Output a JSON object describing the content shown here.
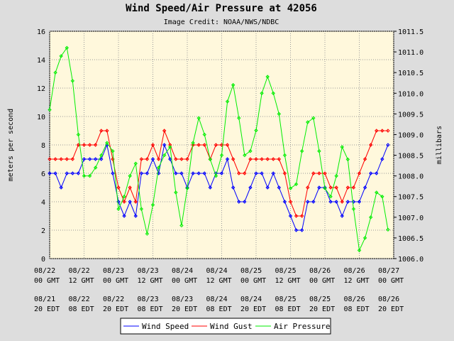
{
  "chart_data": {
    "type": "line",
    "title": "Wind Speed/Air Pressure at 42056",
    "subtitle": "Image Credit: NOAA/NWS/NDBC",
    "ylabel_left": "meters per second",
    "ylabel_right": "millibars",
    "ylim_left": [
      0,
      16
    ],
    "ylim_right": [
      1006.0,
      1011.5
    ],
    "yticks_left": [
      "0",
      "2",
      "4",
      "6",
      "8",
      "10",
      "12",
      "14",
      "16"
    ],
    "yticks_right": [
      "1006.0",
      "1006.5",
      "1007.0",
      "1007.5",
      "1008.0",
      "1008.5",
      "1009.0",
      "1009.5",
      "1010.0",
      "1010.5",
      "1011.0",
      "1011.5"
    ],
    "x_hours_range": [
      0,
      120
    ],
    "xticks_gmt": [
      {
        "date": "08/22",
        "time": "00 GMT"
      },
      {
        "date": "08/22",
        "time": "12 GMT"
      },
      {
        "date": "08/23",
        "time": "00 GMT"
      },
      {
        "date": "08/23",
        "time": "12 GMT"
      },
      {
        "date": "08/24",
        "time": "00 GMT"
      },
      {
        "date": "08/24",
        "time": "12 GMT"
      },
      {
        "date": "08/25",
        "time": "00 GMT"
      },
      {
        "date": "08/25",
        "time": "12 GMT"
      },
      {
        "date": "08/26",
        "time": "00 GMT"
      },
      {
        "date": "08/26",
        "time": "12 GMT"
      },
      {
        "date": "08/27",
        "time": "00 GMT"
      }
    ],
    "xticks_edt": [
      {
        "date": "08/21",
        "time": "20 EDT"
      },
      {
        "date": "08/22",
        "time": "08 EDT"
      },
      {
        "date": "08/22",
        "time": "20 EDT"
      },
      {
        "date": "08/23",
        "time": "08 EDT"
      },
      {
        "date": "08/23",
        "time": "20 EDT"
      },
      {
        "date": "08/24",
        "time": "08 EDT"
      },
      {
        "date": "08/24",
        "time": "20 EDT"
      },
      {
        "date": "08/25",
        "time": "08 EDT"
      },
      {
        "date": "08/25",
        "time": "20 EDT"
      },
      {
        "date": "08/26",
        "time": "08 EDT"
      },
      {
        "date": "08/26",
        "time": "20 EDT"
      }
    ],
    "grid": true,
    "legend_position": "bottom",
    "colors": {
      "plot_bg": "#fff8dc",
      "page_bg": "#dddddd",
      "grid": "#999999"
    },
    "series": [
      {
        "name": "Wind Speed",
        "color": "#0000ff",
        "axis": "left",
        "x": [
          0,
          2,
          4,
          6,
          8,
          10,
          12,
          14,
          16,
          18,
          20,
          22,
          24,
          26,
          28,
          30,
          32,
          34,
          36,
          38,
          40,
          42,
          44,
          46,
          48,
          50,
          52,
          54,
          56,
          58,
          60,
          62,
          64,
          66,
          68,
          70,
          72,
          74,
          76,
          78,
          80,
          82,
          84,
          86,
          88,
          90,
          92,
          94,
          96,
          98,
          100,
          102,
          104,
          106,
          108,
          110,
          112,
          114,
          116,
          118
        ],
        "values": [
          6,
          6,
          5,
          6,
          6,
          6,
          7,
          7,
          7,
          7,
          8,
          6,
          4,
          3,
          4,
          3,
          6,
          6,
          7,
          6,
          8,
          7,
          6,
          6,
          5,
          6,
          6,
          6,
          5,
          6,
          6,
          7,
          5,
          4,
          4,
          5,
          6,
          6,
          5,
          6,
          5,
          4,
          3,
          2,
          2,
          4,
          4,
          5,
          5,
          4,
          4,
          3,
          4,
          4,
          4,
          5,
          6,
          6,
          7,
          8
        ]
      },
      {
        "name": "Wind Gust",
        "color": "#ff0000",
        "axis": "left",
        "x": [
          0,
          2,
          4,
          6,
          8,
          10,
          12,
          14,
          16,
          18,
          20,
          22,
          24,
          26,
          28,
          30,
          32,
          34,
          36,
          38,
          40,
          42,
          44,
          46,
          48,
          50,
          52,
          54,
          56,
          58,
          60,
          62,
          64,
          66,
          68,
          70,
          72,
          74,
          76,
          78,
          80,
          82,
          84,
          86,
          88,
          90,
          92,
          94,
          96,
          98,
          100,
          102,
          104,
          106,
          108,
          110,
          112,
          114,
          116,
          118
        ],
        "values": [
          7,
          7,
          7,
          7,
          7,
          8,
          8,
          8,
          8,
          9,
          9,
          7,
          5,
          4,
          5,
          4,
          7,
          7,
          8,
          7,
          9,
          8,
          7,
          7,
          7,
          8,
          8,
          8,
          7,
          8,
          8,
          8,
          7,
          6,
          6,
          7,
          7,
          7,
          7,
          7,
          7,
          6,
          4,
          3,
          3,
          5,
          6,
          6,
          6,
          5,
          5,
          4,
          5,
          5,
          6,
          7,
          8,
          9,
          9,
          9
        ]
      },
      {
        "name": "Air Pressure",
        "color": "#00ee00",
        "axis": "right",
        "x": [
          0,
          2,
          4,
          6,
          8,
          10,
          12,
          14,
          16,
          18,
          20,
          22,
          24,
          26,
          28,
          30,
          32,
          34,
          36,
          38,
          40,
          42,
          44,
          46,
          48,
          50,
          52,
          54,
          56,
          58,
          60,
          62,
          64,
          66,
          68,
          70,
          72,
          74,
          76,
          78,
          80,
          82,
          84,
          86,
          88,
          90,
          92,
          94,
          96,
          98,
          100,
          102,
          104,
          106,
          108,
          110,
          112,
          114,
          116,
          118
        ],
        "values": [
          1009.6,
          1010.5,
          1010.9,
          1011.1,
          1010.3,
          1009.0,
          1008.0,
          1008.0,
          1008.2,
          1008.5,
          1008.8,
          1008.6,
          1007.2,
          1007.5,
          1008.0,
          1008.3,
          1007.2,
          1006.6,
          1007.3,
          1008.2,
          1008.5,
          1008.7,
          1007.6,
          1006.8,
          1007.7,
          1008.8,
          1009.4,
          1009.0,
          1008.4,
          1008.0,
          1008.5,
          1009.8,
          1010.2,
          1009.4,
          1008.5,
          1008.6,
          1009.1,
          1010.0,
          1010.4,
          1010.0,
          1009.5,
          1008.5,
          1007.7,
          1007.8,
          1008.6,
          1009.3,
          1009.4,
          1008.6,
          1007.7,
          1007.5,
          1008.0,
          1008.7,
          1008.4,
          1007.2,
          1006.2,
          1006.5,
          1007.0,
          1007.6,
          1007.5,
          1006.7
        ]
      }
    ]
  }
}
